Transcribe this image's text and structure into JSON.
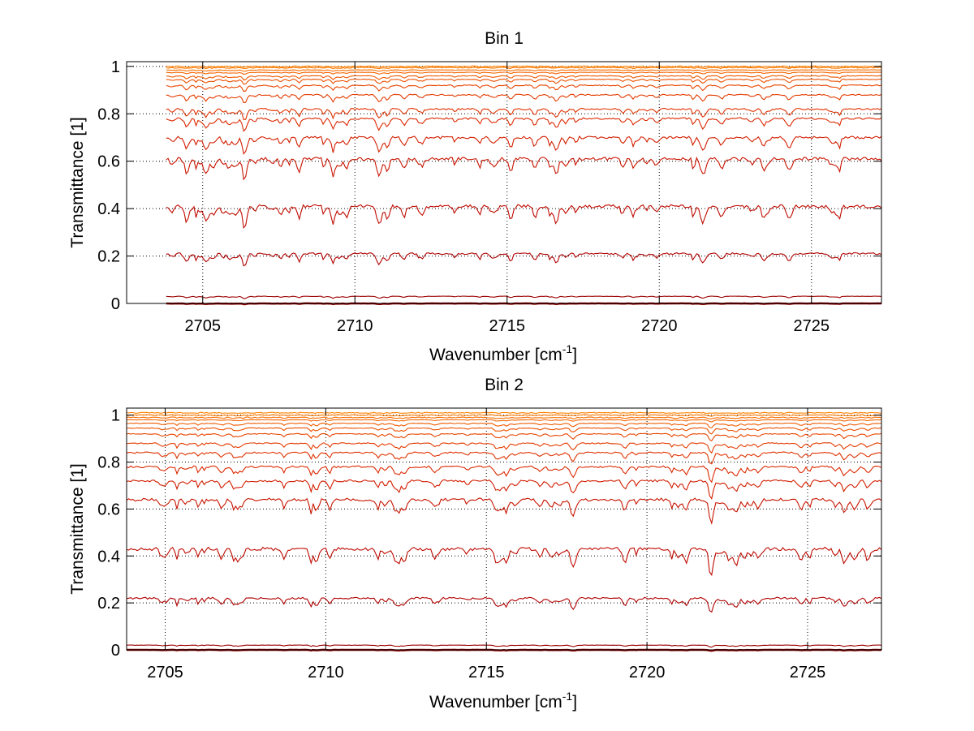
{
  "chart_data": [
    {
      "type": "line",
      "title": "Bin 1",
      "xlabel": "Wavenumber [cm",
      "xlabel_sup": "-1",
      "xlabel_end": "]",
      "ylabel": "Transmittance [1]",
      "xlim": [
        2702.5,
        2727.3
      ],
      "ylim": [
        0,
        1.02
      ],
      "x_start": 2703.8,
      "x_end": 2727.3,
      "xticks": [
        2705,
        2710,
        2715,
        2720,
        2725
      ],
      "yticks": [
        0,
        0.2,
        0.4,
        0.6,
        0.8,
        1
      ],
      "ytick_labels": [
        "0",
        "0.2",
        "0.4",
        "0.6",
        "0.8",
        "1"
      ],
      "grid": true,
      "level_series": [
        0.0,
        0.03,
        0.21,
        0.41,
        0.61,
        0.7,
        0.78,
        0.82,
        0.88,
        0.92,
        0.945,
        0.96,
        0.975,
        0.985,
        0.995,
        1.0
      ],
      "colors": [
        "#8b0000",
        "#9c0000",
        "#b00000",
        "#bf0a00",
        "#c81400",
        "#d21e00",
        "#dc2800",
        "#e03200",
        "#e43c00",
        "#e84600",
        "#ec5000",
        "#f05a00",
        "#f46400",
        "#f86e00",
        "#fa7800",
        "#ff8200"
      ]
    },
    {
      "type": "line",
      "title": "Bin 2",
      "xlabel": "Wavenumber [cm",
      "xlabel_sup": "-1",
      "xlabel_end": "]",
      "ylabel": "Transmittance [1]",
      "xlim": [
        2703.8,
        2727.3
      ],
      "ylim": [
        0,
        1.03
      ],
      "x_start": 2703.8,
      "x_end": 2727.3,
      "xticks": [
        2705,
        2710,
        2715,
        2720,
        2725
      ],
      "yticks": [
        0,
        0.2,
        0.4,
        0.6,
        0.8,
        1
      ],
      "ytick_labels": [
        "0",
        "0.2",
        "0.4",
        "0.6",
        "0.8",
        "1"
      ],
      "grid": true,
      "level_series": [
        0.0,
        0.02,
        0.22,
        0.43,
        0.64,
        0.72,
        0.78,
        0.84,
        0.88,
        0.92,
        0.945,
        0.965,
        0.98,
        0.99,
        1.0,
        1.01
      ],
      "colors": [
        "#8b0000",
        "#9c0000",
        "#b00000",
        "#bf0a00",
        "#c81400",
        "#d21e00",
        "#dc2800",
        "#e03200",
        "#e43c00",
        "#e84600",
        "#ec5000",
        "#f05a00",
        "#f46400",
        "#f86e00",
        "#fa7800",
        "#ff8200"
      ]
    }
  ]
}
